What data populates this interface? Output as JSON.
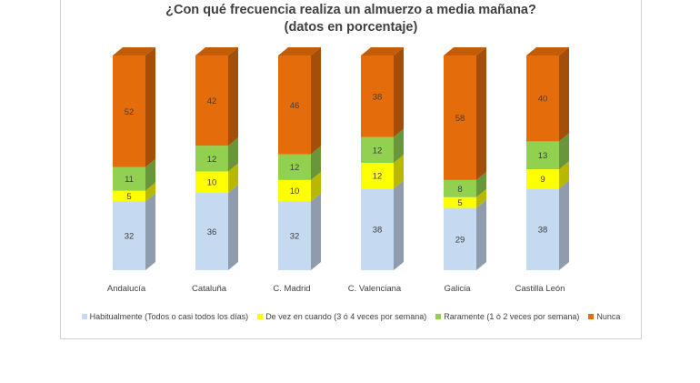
{
  "chart_data": {
    "type": "bar",
    "stacked": true,
    "title": [
      "¿Con qué frecuencia realiza un almuerzo a media mañana?",
      "(datos en porcentaje)"
    ],
    "categories": [
      "Andalucía",
      "Cataluña",
      "C. Madrid",
      "C. Valenciana",
      "Galicia",
      "Castilla León"
    ],
    "series": [
      {
        "name": "Habitualmente (Todos o casi todos los días)",
        "color": "#c5d9f1",
        "values": [
          32,
          36,
          32,
          38,
          29,
          38
        ]
      },
      {
        "name": "De vez en cuando (3 ó 4 veces por semana)",
        "color": "#ffff00",
        "values": [
          5,
          10,
          10,
          12,
          5,
          9
        ]
      },
      {
        "name": "Raramente (1 ó 2 veces por semana)",
        "color": "#92d050",
        "values": [
          11,
          12,
          12,
          12,
          8,
          13
        ]
      },
      {
        "name": "Nunca",
        "color": "#e46c0a",
        "values": [
          52,
          42,
          46,
          38,
          58,
          40
        ]
      }
    ],
    "ylim": [
      0,
      100
    ],
    "grid": false,
    "legend_position": "bottom"
  }
}
